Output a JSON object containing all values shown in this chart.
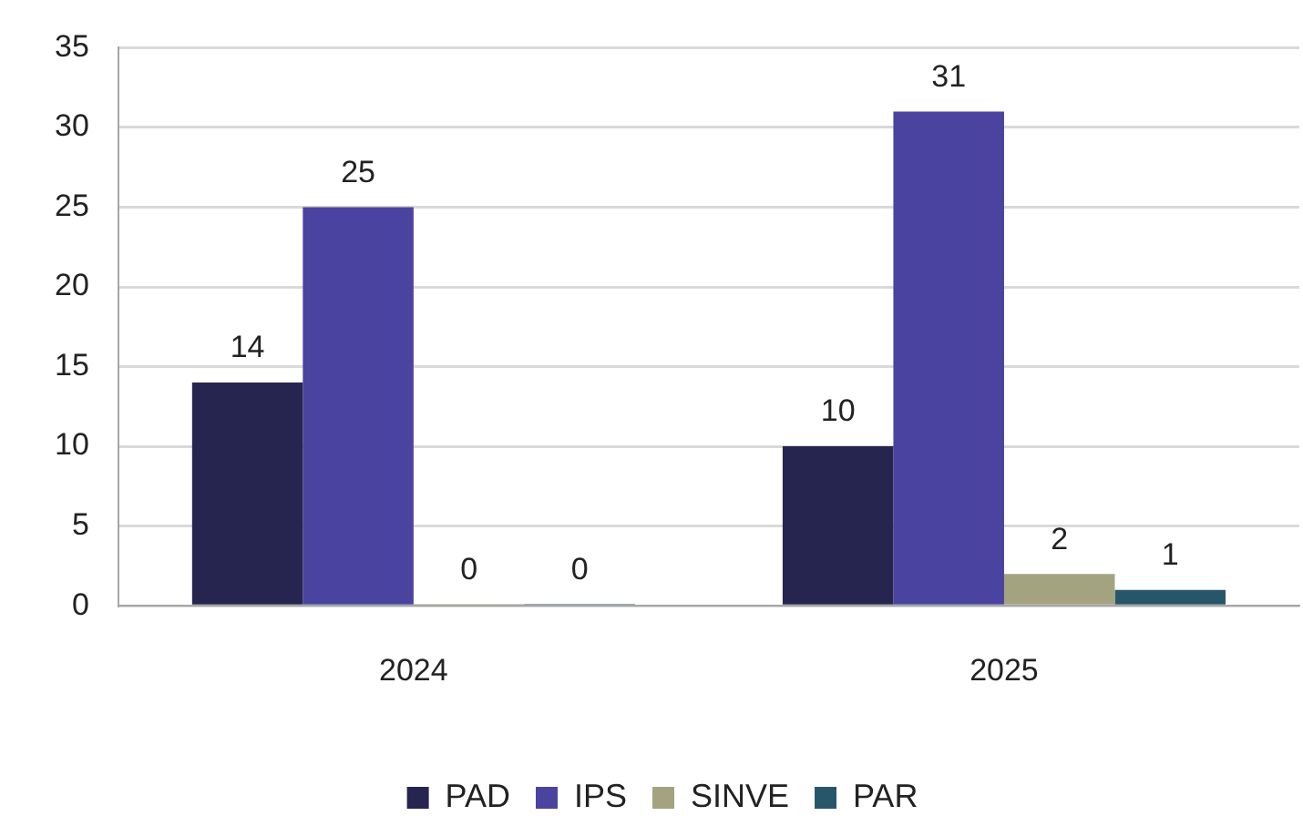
{
  "chart_data": {
    "type": "bar",
    "categories": [
      "2024",
      "2025"
    ],
    "series": [
      {
        "name": "PAD",
        "color": "#262550",
        "values": [
          14,
          10
        ]
      },
      {
        "name": "IPS",
        "color": "#4a43a0",
        "values": [
          25,
          31
        ]
      },
      {
        "name": "SINVE",
        "color": "#a4a380",
        "values": [
          0,
          2
        ]
      },
      {
        "name": "PAR",
        "color": "#27566b",
        "values": [
          0,
          1
        ]
      }
    ],
    "ylim": [
      0,
      35
    ],
    "yticks": [
      0,
      5,
      10,
      15,
      20,
      25,
      30,
      35
    ],
    "grid": "y",
    "legend": "bottom",
    "data_labels": true
  }
}
